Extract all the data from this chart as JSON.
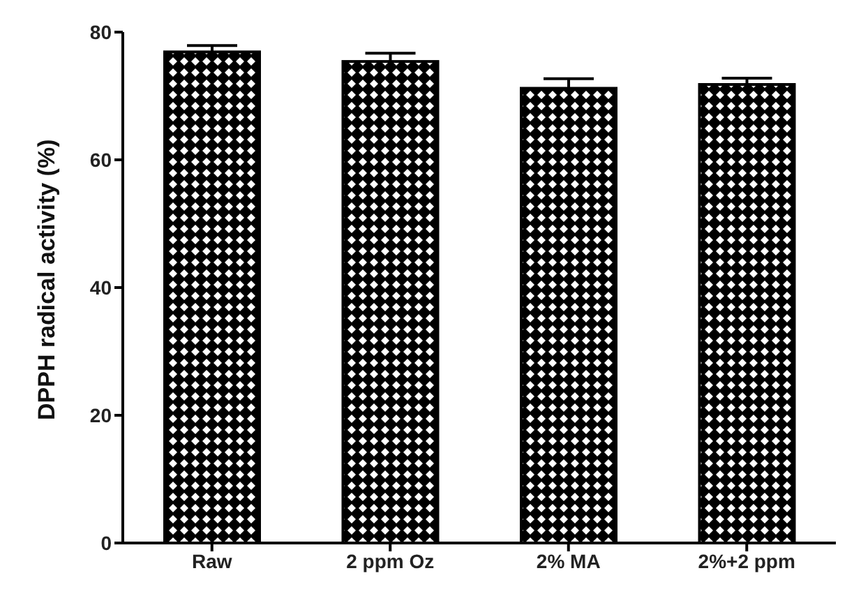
{
  "chart_data": {
    "type": "bar",
    "ylabel": "DPPH radical activity (%)",
    "categories": [
      "Raw",
      "2 ppm Oz",
      "2% MA",
      "2%+2 ppm"
    ],
    "values": [
      76.9,
      75.4,
      71.2,
      71.8
    ],
    "errors": [
      1.0,
      1.3,
      1.5,
      1.0
    ],
    "color": "#000000",
    "ylim": [
      0,
      80
    ],
    "yticks": [
      0,
      20,
      40,
      60,
      80
    ],
    "grid": false
  }
}
